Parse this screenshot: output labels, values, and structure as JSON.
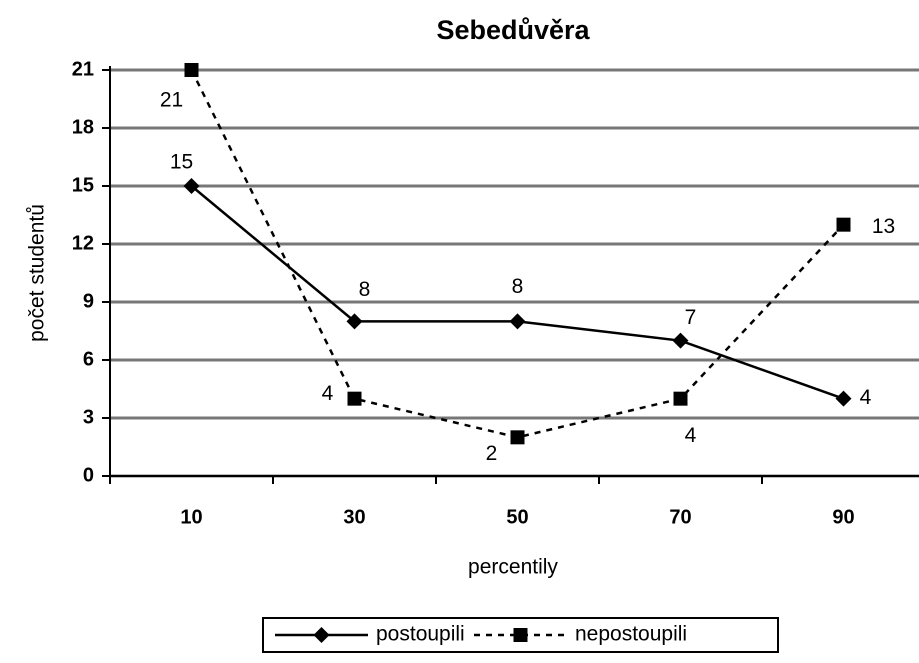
{
  "chart_data": {
    "type": "line",
    "title": "Sebedůvěra",
    "x_label": "percentily",
    "y_label": "počet studentů",
    "categories": [
      "10",
      "30",
      "50",
      "70",
      "90"
    ],
    "series": [
      {
        "name": "postoupili",
        "color": "#000000",
        "line_style": "solid",
        "marker": "diamond",
        "values": [
          15,
          8,
          8,
          7,
          4
        ]
      },
      {
        "name": "nepostoupili",
        "color": "#000000",
        "line_style": "dashed",
        "marker": "square",
        "values": [
          21,
          4,
          2,
          4,
          13
        ]
      }
    ],
    "ylim": [
      0,
      21
    ],
    "yticks": [
      0,
      3,
      6,
      9,
      12,
      15,
      18,
      21
    ],
    "grid": true,
    "legend": "bottom"
  }
}
